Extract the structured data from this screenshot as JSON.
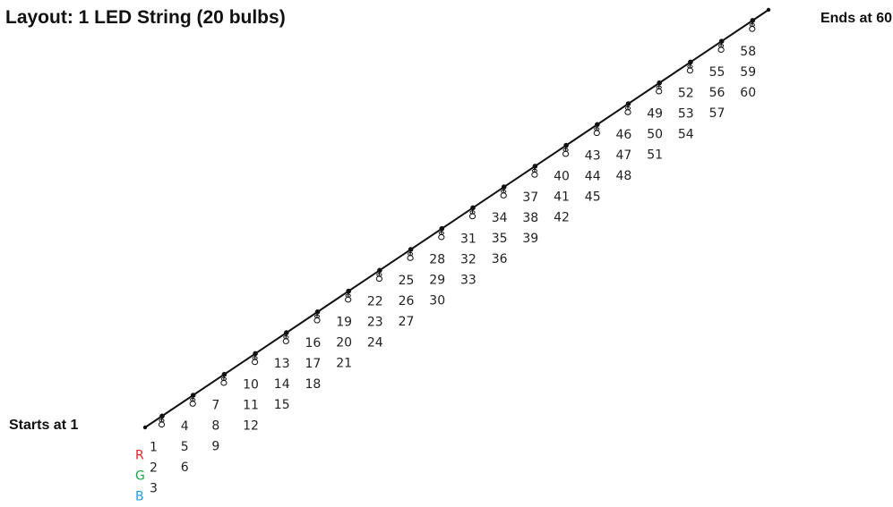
{
  "header": {
    "title": "Layout: 1 LED String (20 bulbs)"
  },
  "string": {
    "start_label": "Starts at 1",
    "end_label": "Ends at 60",
    "bulb_count": 20,
    "channels_per_bulb": 3
  },
  "legend": [
    {
      "letter": "R",
      "color": "#e8202a"
    },
    {
      "letter": "G",
      "color": "#1aa84a"
    },
    {
      "letter": "B",
      "color": "#1aa0e0"
    }
  ],
  "bulbs": [
    {
      "channels": [
        "1",
        "2",
        "3"
      ]
    },
    {
      "channels": [
        "4",
        "5",
        "6"
      ]
    },
    {
      "channels": [
        "7",
        "8",
        "9"
      ]
    },
    {
      "channels": [
        "10",
        "11",
        "12"
      ]
    },
    {
      "channels": [
        "13",
        "14",
        "15"
      ]
    },
    {
      "channels": [
        "16",
        "17",
        "18"
      ]
    },
    {
      "channels": [
        "19",
        "20",
        "21"
      ]
    },
    {
      "channels": [
        "22",
        "23",
        "24"
      ]
    },
    {
      "channels": [
        "25",
        "26",
        "27"
      ]
    },
    {
      "channels": [
        "28",
        "29",
        "30"
      ]
    },
    {
      "channels": [
        "31",
        "32",
        "33"
      ]
    },
    {
      "channels": [
        "34",
        "35",
        "36"
      ]
    },
    {
      "channels": [
        "37",
        "38",
        "39"
      ]
    },
    {
      "channels": [
        "40",
        "41",
        "42"
      ]
    },
    {
      "channels": [
        "43",
        "44",
        "45"
      ]
    },
    {
      "channels": [
        "46",
        "47",
        "48"
      ]
    },
    {
      "channels": [
        "49",
        "50",
        "51"
      ]
    },
    {
      "channels": [
        "52",
        "53",
        "54"
      ]
    },
    {
      "channels": [
        "55",
        "56",
        "57"
      ]
    },
    {
      "channels": [
        "58",
        "59",
        "60"
      ]
    }
  ]
}
